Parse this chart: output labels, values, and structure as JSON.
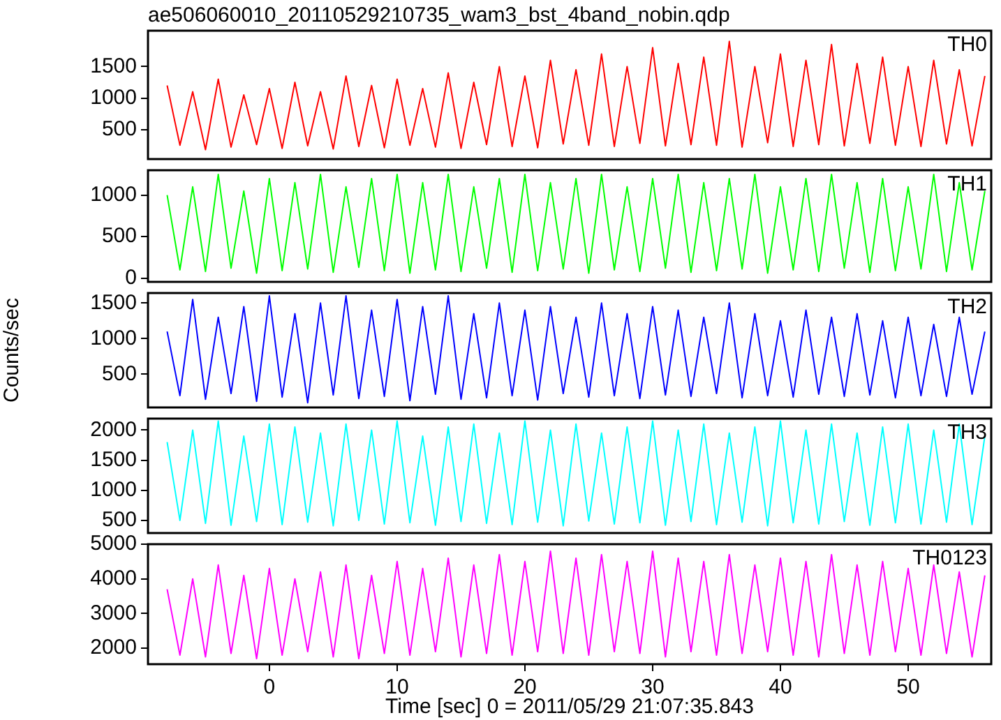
{
  "chart_data": [
    {
      "type": "line",
      "title": "ae506060010_20110529210735_wam3_bst_4band_nobin.qdp",
      "x": [
        -8,
        -7,
        -6,
        -5,
        -4,
        -3,
        -2,
        -1,
        0,
        1,
        2,
        3,
        4,
        5,
        6,
        7,
        8,
        9,
        10,
        11,
        12,
        13,
        14,
        15,
        16,
        17,
        18,
        19,
        20,
        21,
        22,
        23,
        24,
        25,
        26,
        27,
        28,
        29,
        30,
        31,
        32,
        33,
        34,
        35,
        36,
        37,
        38,
        39,
        40,
        41,
        42,
        43,
        44,
        45,
        46,
        47,
        48,
        49,
        50,
        51,
        52,
        53,
        54,
        55,
        56
      ],
      "xlim": [
        -9.5,
        56.5
      ],
      "xticks": [
        0,
        10,
        20,
        30,
        40,
        50
      ],
      "ylim": [
        30,
        2070
      ],
      "yticks": [
        500,
        1000,
        1500
      ],
      "tick_labels": "y",
      "series": [
        {
          "name": "TH0",
          "color": "#ff0000",
          "values": [
            1200,
            250,
            1100,
            180,
            1300,
            220,
            1050,
            260,
            1150,
            200,
            1250,
            240,
            1100,
            190,
            1350,
            230,
            1200,
            210,
            1300,
            250,
            1150,
            220,
            1400,
            200,
            1250,
            260,
            1500,
            230,
            1350,
            210,
            1600,
            270,
            1450,
            250,
            1700,
            230,
            1500,
            280,
            1800,
            240,
            1550,
            260,
            1650,
            250,
            1900,
            220,
            1500,
            290,
            1700,
            230,
            1600,
            260,
            1850,
            240,
            1550,
            280,
            1650,
            250,
            1500,
            230,
            1600,
            270,
            1450,
            240,
            1350
          ]
        }
      ]
    },
    {
      "type": "line",
      "x": [
        -8,
        -7,
        -6,
        -5,
        -4,
        -3,
        -2,
        -1,
        0,
        1,
        2,
        3,
        4,
        5,
        6,
        7,
        8,
        9,
        10,
        11,
        12,
        13,
        14,
        15,
        16,
        17,
        18,
        19,
        20,
        21,
        22,
        23,
        24,
        25,
        26,
        27,
        28,
        29,
        30,
        31,
        32,
        33,
        34,
        35,
        36,
        37,
        38,
        39,
        40,
        41,
        42,
        43,
        44,
        45,
        46,
        47,
        48,
        49,
        50,
        51,
        52,
        53,
        54,
        55,
        56
      ],
      "xlim": [
        -9.5,
        56.5
      ],
      "xticks": [
        0,
        10,
        20,
        30,
        40,
        50
      ],
      "ylim": [
        -45,
        1300
      ],
      "yticks": [
        0,
        500,
        1000
      ],
      "tick_labels": "y",
      "series": [
        {
          "name": "TH1",
          "color": "#00ff00",
          "values": [
            1000,
            100,
            1100,
            80,
            1250,
            120,
            1050,
            60,
            1200,
            90,
            1150,
            110,
            1250,
            70,
            1100,
            130,
            1200,
            90,
            1250,
            60,
            1150,
            100,
            1250,
            80,
            1100,
            120,
            1200,
            70,
            1250,
            90,
            1150,
            110,
            1200,
            60,
            1250,
            100,
            1100,
            80,
            1200,
            120,
            1250,
            70,
            1150,
            90,
            1200,
            110,
            1250,
            60,
            1100,
            100,
            1200,
            80,
            1250,
            120,
            1150,
            70,
            1200,
            90,
            1100,
            110,
            1250,
            80,
            1150,
            100,
            1050
          ]
        }
      ]
    },
    {
      "type": "line",
      "ylabel": "Counts/sec",
      "x": [
        -8,
        -7,
        -6,
        -5,
        -4,
        -3,
        -2,
        -1,
        0,
        1,
        2,
        3,
        4,
        5,
        6,
        7,
        8,
        9,
        10,
        11,
        12,
        13,
        14,
        15,
        16,
        17,
        18,
        19,
        20,
        21,
        22,
        23,
        24,
        25,
        26,
        27,
        28,
        29,
        30,
        31,
        32,
        33,
        34,
        35,
        36,
        37,
        38,
        39,
        40,
        41,
        42,
        43,
        44,
        45,
        46,
        47,
        48,
        49,
        50,
        51,
        52,
        53,
        54,
        55,
        56
      ],
      "xlim": [
        -9.5,
        56.5
      ],
      "xticks": [
        0,
        10,
        20,
        30,
        40,
        50
      ],
      "ylim": [
        35,
        1640
      ],
      "yticks": [
        500,
        1000,
        1500
      ],
      "tick_labels": "y",
      "series": [
        {
          "name": "TH2",
          "color": "#0000ff",
          "values": [
            1100,
            200,
            1550,
            150,
            1300,
            230,
            1450,
            120,
            1600,
            180,
            1350,
            100,
            1500,
            210,
            1600,
            160,
            1400,
            190,
            1550,
            130,
            1450,
            220,
            1600,
            150,
            1350,
            170,
            1500,
            200,
            1400,
            140,
            1450,
            230,
            1300,
            180,
            1500,
            200,
            1350,
            160,
            1450,
            210,
            1400,
            190,
            1300,
            230,
            1500,
            170,
            1350,
            200,
            1250,
            180,
            1400,
            220,
            1300,
            190,
            1350,
            210,
            1250,
            170,
            1300,
            200,
            1200,
            190,
            1300,
            220,
            1100
          ]
        }
      ]
    },
    {
      "type": "line",
      "x": [
        -8,
        -7,
        -6,
        -5,
        -4,
        -3,
        -2,
        -1,
        0,
        1,
        2,
        3,
        4,
        5,
        6,
        7,
        8,
        9,
        10,
        11,
        12,
        13,
        14,
        15,
        16,
        17,
        18,
        19,
        20,
        21,
        22,
        23,
        24,
        25,
        26,
        27,
        28,
        29,
        30,
        31,
        32,
        33,
        34,
        35,
        36,
        37,
        38,
        39,
        40,
        41,
        42,
        43,
        44,
        45,
        46,
        47,
        48,
        49,
        50,
        51,
        52,
        53,
        54,
        55,
        56
      ],
      "xlim": [
        -9.5,
        56.5
      ],
      "xticks": [
        0,
        10,
        20,
        30,
        40,
        50
      ],
      "ylim": [
        290,
        2190
      ],
      "yticks": [
        500,
        1000,
        1500,
        2000
      ],
      "tick_labels": "y",
      "series": [
        {
          "name": "TH3",
          "color": "#00ffff",
          "values": [
            1800,
            500,
            2000,
            450,
            2150,
            420,
            1900,
            480,
            2100,
            430,
            2050,
            470,
            1950,
            410,
            2100,
            500,
            2000,
            440,
            2150,
            460,
            1900,
            420,
            2050,
            480,
            2100,
            450,
            1950,
            430,
            2150,
            470,
            2000,
            410,
            2100,
            490,
            1950,
            440,
            2050,
            460,
            2150,
            420,
            2000,
            480,
            2100,
            430,
            1950,
            470,
            2050,
            410,
            2150,
            460,
            2000,
            440,
            2100,
            480,
            1950,
            420,
            2050,
            460,
            2100,
            440,
            2000,
            470,
            2100,
            430,
            1900
          ]
        }
      ]
    },
    {
      "type": "line",
      "xlabel": "Time [sec] 0 = 2011/05/29 21:07:35.843",
      "x": [
        -8,
        -7,
        -6,
        -5,
        -4,
        -3,
        -2,
        -1,
        0,
        1,
        2,
        3,
        4,
        5,
        6,
        7,
        8,
        9,
        10,
        11,
        12,
        13,
        14,
        15,
        16,
        17,
        18,
        19,
        20,
        21,
        22,
        23,
        24,
        25,
        26,
        27,
        28,
        29,
        30,
        31,
        32,
        33,
        34,
        35,
        36,
        37,
        38,
        39,
        40,
        41,
        42,
        43,
        44,
        45,
        46,
        47,
        48,
        49,
        50,
        51,
        52,
        53,
        54,
        55,
        56
      ],
      "xlim": [
        -9.5,
        56.5
      ],
      "xticks": [
        0,
        10,
        20,
        30,
        40,
        50
      ],
      "ylim": [
        1540,
        5000
      ],
      "yticks": [
        2000,
        3000,
        4000,
        5000
      ],
      "series": [
        {
          "name": "TH0123",
          "color": "#ff00ff",
          "values": [
            3700,
            1800,
            4000,
            1750,
            4400,
            1850,
            4100,
            1700,
            4300,
            1800,
            4000,
            1900,
            4200,
            1750,
            4400,
            1700,
            4100,
            1850,
            4500,
            1800,
            4300,
            1900,
            4600,
            1750,
            4400,
            1850,
            4700,
            1800,
            4500,
            1900,
            4800,
            1850,
            4600,
            1800,
            4700,
            1900,
            4500,
            1850,
            4800,
            1750,
            4600,
            1900,
            4500,
            1800,
            4700,
            1850,
            4400,
            1900,
            4600,
            1800,
            4500,
            1750,
            4700,
            1850,
            4400,
            1800,
            4500,
            1900,
            4300,
            1800,
            4400,
            1850,
            4200,
            1750,
            4100
          ]
        }
      ]
    }
  ]
}
